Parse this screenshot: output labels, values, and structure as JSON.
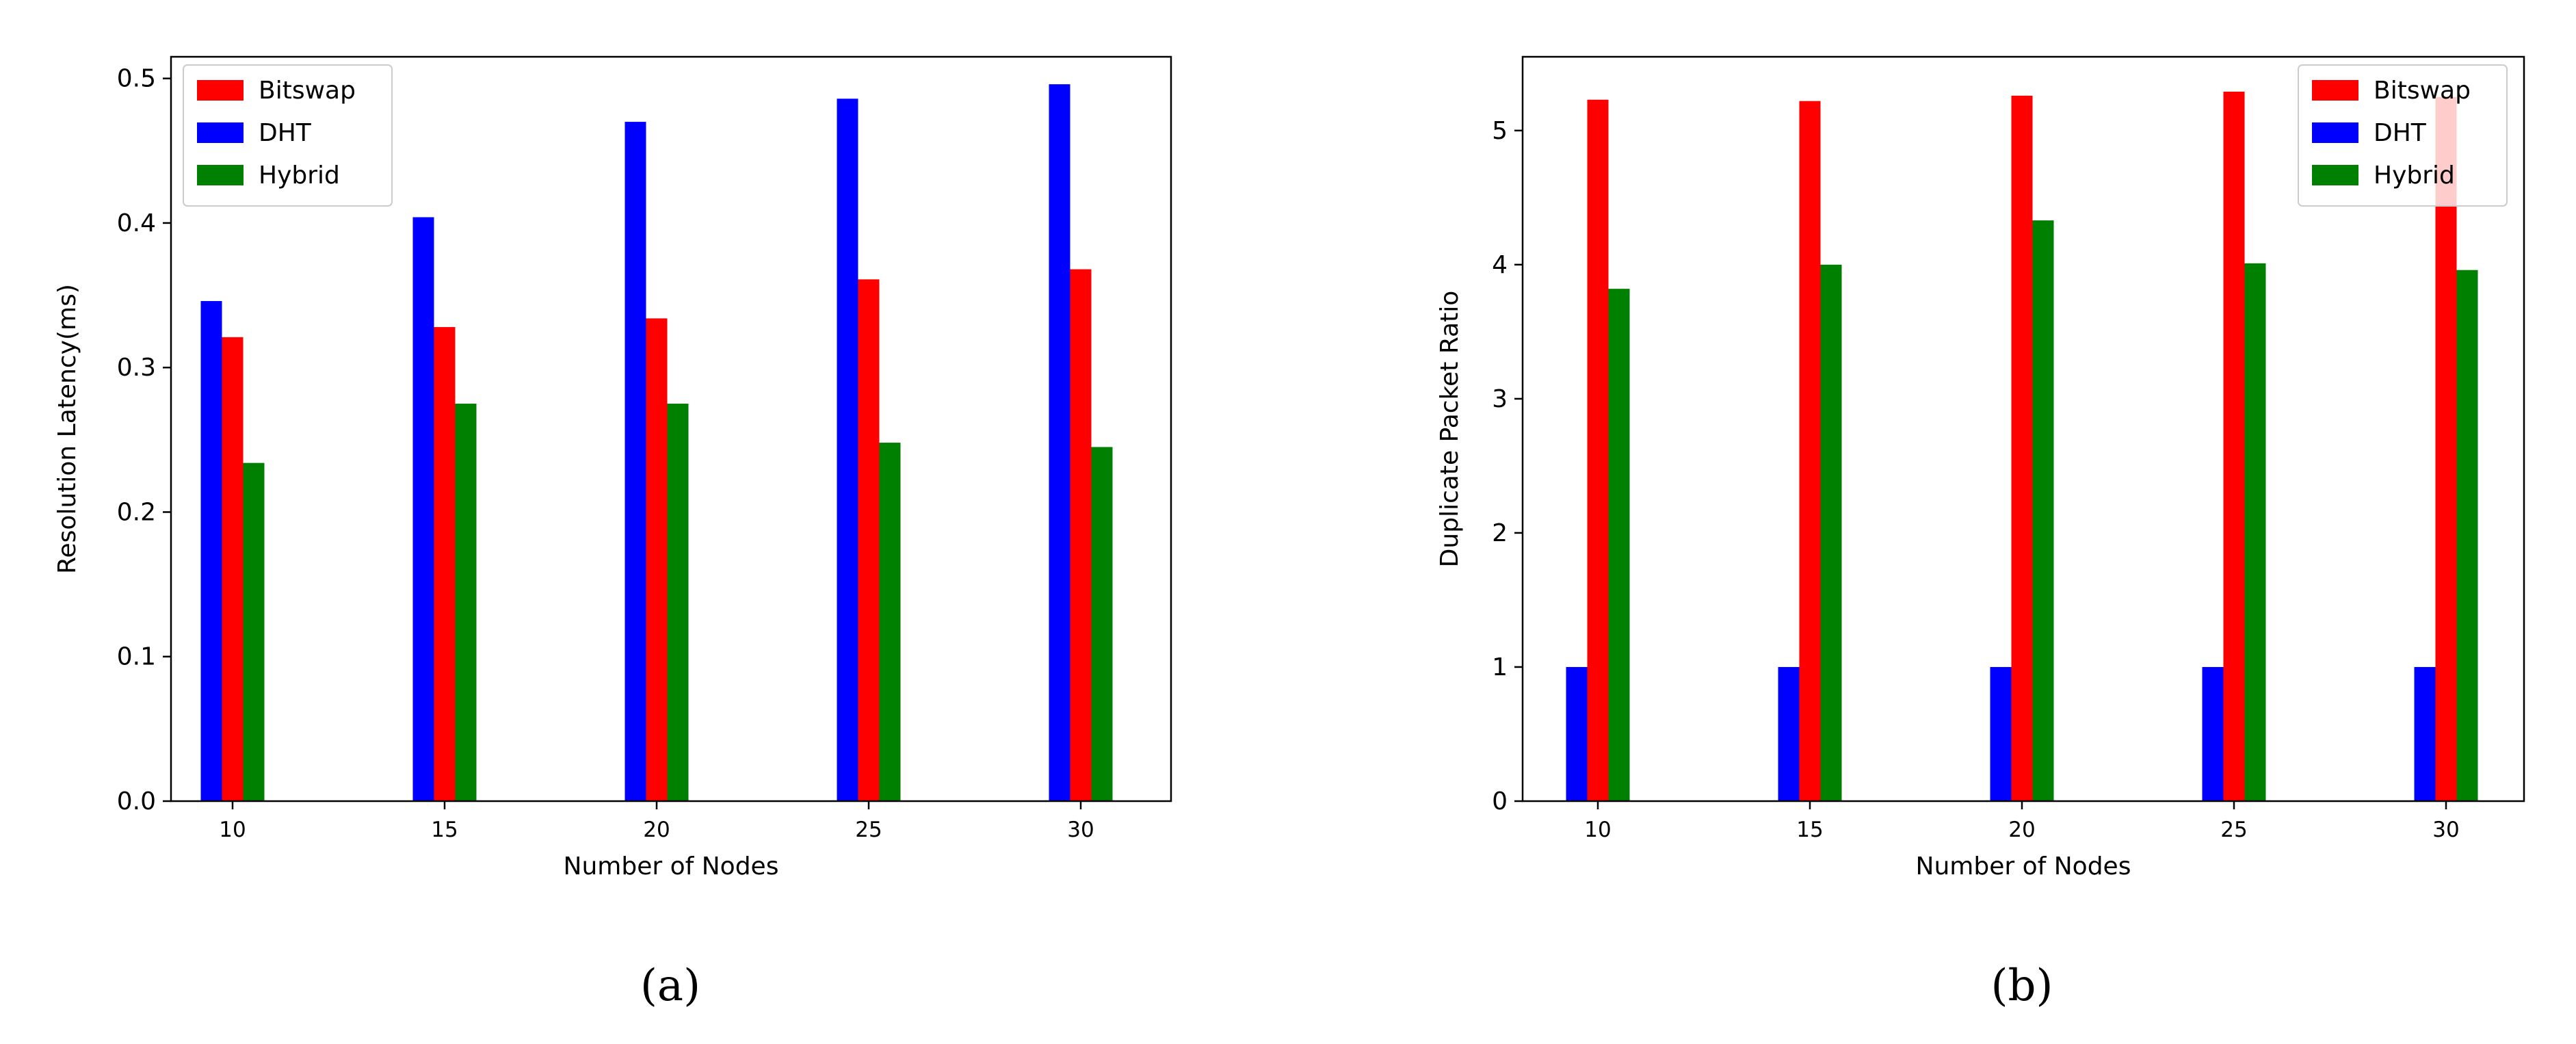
{
  "figure": {
    "captions": [
      "(a)",
      "(b)"
    ]
  },
  "colors": {
    "Bitswap": "#ff0000",
    "DHT": "#0000ff",
    "Hybrid": "#008000"
  },
  "chart_data": [
    {
      "type": "bar",
      "title": "",
      "xlabel": "Number of Nodes",
      "ylabel": "Resolution Latency(ms)",
      "categories": [
        "10",
        "15",
        "20",
        "25",
        "30"
      ],
      "series": [
        {
          "name": "DHT",
          "values": [
            0.346,
            0.404,
            0.47,
            0.486,
            0.496
          ]
        },
        {
          "name": "Bitswap",
          "values": [
            0.321,
            0.328,
            0.334,
            0.361,
            0.368
          ]
        },
        {
          "name": "Hybrid",
          "values": [
            0.234,
            0.275,
            0.275,
            0.248,
            0.245
          ]
        }
      ],
      "ylim": [
        0,
        0.515
      ],
      "yticks": [
        "0.0",
        "0.1",
        "0.2",
        "0.3",
        "0.4",
        "0.5"
      ],
      "legend": {
        "position": "top-left",
        "entries": [
          "Bitswap",
          "DHT",
          "Hybrid"
        ]
      },
      "grid": false
    },
    {
      "type": "bar",
      "title": "",
      "xlabel": "Number of Nodes",
      "ylabel": "Duplicate Packet Ratio",
      "categories": [
        "10",
        "15",
        "20",
        "25",
        "30"
      ],
      "series": [
        {
          "name": "DHT",
          "values": [
            1.0,
            1.0,
            1.0,
            1.0,
            1.0
          ]
        },
        {
          "name": "Bitswap",
          "values": [
            5.23,
            5.22,
            5.26,
            5.29,
            5.25
          ]
        },
        {
          "name": "Hybrid",
          "values": [
            3.82,
            4.0,
            4.33,
            4.01,
            3.96
          ]
        }
      ],
      "ylim": [
        0,
        5.55
      ],
      "yticks": [
        "0",
        "1",
        "2",
        "3",
        "4",
        "5"
      ],
      "legend": {
        "position": "top-right",
        "entries": [
          "Bitswap",
          "DHT",
          "Hybrid"
        ]
      },
      "grid": false
    }
  ]
}
